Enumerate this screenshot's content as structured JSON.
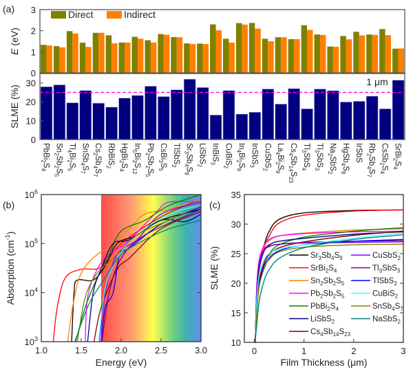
{
  "chart_data": [
    {
      "panel": "(a)",
      "type": "bar",
      "ylabel": "E (eV)",
      "ylim": [
        0,
        3
      ],
      "yticks": [
        0,
        1,
        2,
        3
      ],
      "categories": [
        "PbBi2S4",
        "Sn2Sb2S5",
        "Tl4Bi2S5",
        "SnSb4S7",
        "Cs2Sb4S7",
        "RbBiS2",
        "HgBi2S4",
        "In5Bi3S12",
        "Pb2Sb2S5",
        "CsBi3S5",
        "TlSbS2",
        "Sr3Sb4S9",
        "LiSbS2",
        "InBiS3",
        "CuBiS2",
        "In4Bi2S9",
        "InSbS3",
        "CuSbS2",
        "La4Bi2S9",
        "Cs4Sb14S23",
        "Tl3SbS4",
        "Tl3SbS3",
        "Na2SbS2",
        "HgSb4S8",
        "IrSbS",
        "Rb2Sb4S7",
        "CsSb2S4",
        "SrBi2S4"
      ],
      "legend_position": "top-left",
      "series": [
        {
          "name": "Direct",
          "color": "#808000",
          "values": [
            1.33,
            1.27,
            1.98,
            1.43,
            1.9,
            1.78,
            1.44,
            1.71,
            1.55,
            1.84,
            1.7,
            1.4,
            1.39,
            2.3,
            1.62,
            2.36,
            2.37,
            1.62,
            1.69,
            1.6,
            2.26,
            1.82,
            1.25,
            1.75,
            1.95,
            1.82,
            2.08,
            1.15
          ]
        },
        {
          "name": "Indirect",
          "color": "#ff8000",
          "values": [
            1.3,
            1.21,
            1.87,
            1.23,
            1.9,
            1.4,
            1.44,
            1.62,
            1.44,
            1.81,
            1.69,
            1.37,
            1.37,
            2.02,
            1.44,
            2.29,
            2.1,
            1.5,
            1.69,
            1.6,
            2.04,
            1.8,
            1.24,
            1.59,
            1.78,
            1.8,
            1.79,
            1.16
          ]
        }
      ]
    },
    {
      "panel": "(a)",
      "type": "bar",
      "ylabel": "SLME (%)",
      "ylim": [
        0,
        35
      ],
      "yticks": [
        0,
        10,
        20,
        30
      ],
      "annotation": "1 μm",
      "reference_line": {
        "value": 25,
        "color": "#ff00ff",
        "style": "dashed"
      },
      "color": "#000080",
      "values": [
        28.0,
        29.0,
        19.5,
        26.0,
        19.3,
        17.2,
        22.0,
        23.4,
        28.3,
        22.8,
        26.4,
        32.0,
        27.6,
        13.0,
        26.0,
        13.5,
        14.5,
        26.8,
        18.8,
        27.0,
        16.3,
        26.8,
        25.9,
        19.9,
        20.3,
        23.0,
        16.3,
        31.5
      ]
    },
    {
      "panel": "(b)",
      "type": "line",
      "xlabel": "Energy (eV)",
      "ylabel": "Absorption (cm-1)",
      "xlim": [
        1.0,
        3.0
      ],
      "ylim": [
        1000,
        1000000
      ],
      "yscale": "log",
      "xticks": [
        "1.0",
        "1.5",
        "2.0",
        "2.5",
        "3.0"
      ],
      "yticks": [
        3,
        4,
        5,
        6
      ],
      "visible_spectrum_band": {
        "from": 1.75,
        "to": 3.0
      },
      "series": [
        {
          "color": "#ff0000",
          "points": [
            [
              1.15,
              1000.0
            ],
            [
              1.2,
              5000.0
            ],
            [
              1.3,
              20000.0
            ],
            [
              1.5,
              30000.0
            ],
            [
              1.75,
              33000.0
            ],
            [
              2.0,
              100000.0
            ],
            [
              2.5,
              350000.0
            ],
            [
              3.0,
              800000.0
            ]
          ]
        },
        {
          "color": "#000000",
          "points": [
            [
              1.38,
              1000.0
            ],
            [
              1.41,
              10000.0
            ],
            [
              1.45,
              18000.0
            ],
            [
              1.65,
              18000.0
            ],
            [
              1.8,
              35000.0
            ],
            [
              1.95,
              100000.0
            ],
            [
              2.2,
              150000.0
            ],
            [
              2.5,
              300000.0
            ],
            [
              3.0,
              500000.0
            ]
          ]
        },
        {
          "color": "#ff8000",
          "points": [
            [
              1.33,
              1000.0
            ],
            [
              1.4,
              6000.0
            ],
            [
              1.5,
              25000.0
            ],
            [
              1.7,
              60000.0
            ],
            [
              1.9,
              90000.0
            ],
            [
              2.1,
              200000.0
            ],
            [
              2.3,
              400000.0
            ],
            [
              2.6,
              500000.0
            ],
            [
              3.0,
              800000.0
            ]
          ]
        },
        {
          "color": "#ff00ff",
          "points": [
            [
              1.55,
              1000.0
            ],
            [
              1.58,
              8000.0
            ],
            [
              1.7,
              30000.0
            ],
            [
              1.85,
              60000.0
            ],
            [
              2.05,
              100000.0
            ],
            [
              2.3,
              250000.0
            ],
            [
              2.45,
              450000.0
            ],
            [
              2.6,
              700000.0
            ],
            [
              3.0,
              700000.0
            ]
          ]
        },
        {
          "color": "#008000",
          "points": [
            [
              1.43,
              1000.0
            ],
            [
              1.55,
              5000.0
            ],
            [
              1.7,
              20000.0
            ],
            [
              1.85,
              60000.0
            ],
            [
              2.0,
              180000.0
            ],
            [
              2.3,
              300000.0
            ],
            [
              2.6,
              600000.0
            ],
            [
              3.0,
              1000000.0
            ]
          ]
        },
        {
          "color": "#000080",
          "points": [
            [
              1.58,
              1000.0
            ],
            [
              1.65,
              10000.0
            ],
            [
              1.75,
              30000.0
            ],
            [
              1.9,
              100000.0
            ],
            [
              2.1,
              120000.0
            ],
            [
              2.5,
              300000.0
            ],
            [
              2.8,
              280000.0
            ],
            [
              3.0,
              400000.0
            ]
          ]
        },
        {
          "color": "#800000",
          "points": [
            [
              1.66,
              1000.0
            ],
            [
              1.75,
              5000.0
            ],
            [
              1.95,
              30000.0
            ],
            [
              2.1,
              50000.0
            ],
            [
              2.5,
              200000.0
            ],
            [
              3.0,
              450000.0
            ]
          ]
        },
        {
          "color": "#8000ff",
          "points": [
            [
              1.73,
              1000.0
            ],
            [
              1.8,
              10000.0
            ],
            [
              1.95,
              60000.0
            ],
            [
              2.2,
              120000.0
            ],
            [
              2.5,
              400000.0
            ],
            [
              3.0,
              700000.0
            ]
          ]
        },
        {
          "color": "#800080",
          "points": [
            [
              1.76,
              1000.0
            ],
            [
              1.85,
              10000.0
            ],
            [
              2.0,
              50000.0
            ],
            [
              2.3,
              150000.0
            ],
            [
              3.0,
              500000.0
            ]
          ]
        },
        {
          "color": "#0000ff",
          "points": [
            [
              1.75,
              1000.0
            ],
            [
              1.8,
              5000.0
            ],
            [
              1.9,
              10000.0
            ],
            [
              1.98,
              60000.0
            ],
            [
              2.1,
              80000.0
            ],
            [
              2.5,
              250000.0
            ],
            [
              3.0,
              550000.0
            ]
          ]
        },
        {
          "color": "#40ffff",
          "points": [
            [
              1.72,
              1000.0
            ],
            [
              1.8,
              12000.0
            ],
            [
              1.95,
              50000.0
            ],
            [
              2.2,
              150000.0
            ],
            [
              2.6,
              400000.0
            ],
            [
              3.0,
              600000.0
            ]
          ]
        },
        {
          "color": "#808000",
          "points": [
            [
              1.45,
              1000.0
            ],
            [
              1.55,
              8000.0
            ],
            [
              1.7,
              25000.0
            ],
            [
              1.9,
              50000.0
            ],
            [
              2.2,
              150000.0
            ],
            [
              2.6,
              300000.0
            ],
            [
              3.0,
              600000.0
            ]
          ]
        },
        {
          "color": "#008080",
          "points": [
            [
              1.42,
              1000.0
            ],
            [
              1.6,
              6000.0
            ],
            [
              1.8,
              20000.0
            ],
            [
              2.0,
              60000.0
            ],
            [
              2.3,
              120000.0
            ],
            [
              2.6,
              200000.0
            ],
            [
              3.0,
              300000.0
            ]
          ]
        }
      ]
    },
    {
      "panel": "(c)",
      "type": "line",
      "xlabel": "Film Thickness (μm)",
      "ylabel": "SLME (%)",
      "xlim": [
        -0.2,
        3
      ],
      "ylim": [
        10,
        35
      ],
      "xticks": [
        0,
        1,
        2,
        3
      ],
      "yticks": [
        10,
        15,
        20,
        25,
        30,
        35
      ],
      "legend_position": "center-right",
      "x": [
        0.02,
        0.05,
        0.1,
        0.2,
        0.3,
        0.5,
        1,
        2,
        3
      ],
      "series": [
        {
          "name": "Sr3Sb4S9",
          "color": "#000000",
          "values": [
            10,
            19,
            23,
            26.5,
            28.8,
            30.8,
            31.9,
            32.3,
            32.4
          ]
        },
        {
          "name": "SrBi2S4",
          "color": "#ff0000",
          "values": [
            10,
            18.5,
            22.5,
            26,
            28,
            30.2,
            31.5,
            32.2,
            32.4
          ]
        },
        {
          "name": "Sn2Sb2S5",
          "color": "#ff8000",
          "values": [
            10,
            19,
            23.5,
            26.2,
            27.2,
            28,
            28.5,
            29,
            29.2
          ]
        },
        {
          "name": "Pb2Sb2S5",
          "color": "#ff00ff",
          "values": [
            10,
            19.5,
            24,
            26.5,
            27.4,
            28,
            28.4,
            28.7,
            28.8
          ]
        },
        {
          "name": "PbBi2S4",
          "color": "#008000",
          "values": [
            10,
            16,
            20.5,
            23.5,
            25,
            26.5,
            27.8,
            28.8,
            29.4
          ]
        },
        {
          "name": "LiSbS2",
          "color": "#000080",
          "values": [
            10,
            17.5,
            22.5,
            25.5,
            26.5,
            27.1,
            27.6,
            28.3,
            28.7
          ]
        },
        {
          "name": "Cs4Sb14S23",
          "color": "#800000",
          "values": [
            10,
            16,
            20.5,
            23.5,
            24.8,
            26,
            27,
            28.1,
            28.8
          ]
        },
        {
          "name": "CuSbS2",
          "color": "#8000ff",
          "values": [
            10,
            19,
            23.5,
            25.8,
            26.3,
            26.6,
            26.8,
            26.9,
            27.0
          ]
        },
        {
          "name": "Tl3SbS3",
          "color": "#800080",
          "values": [
            10,
            18,
            23,
            25.5,
            26.2,
            26.6,
            26.9,
            27.1,
            27.2
          ]
        },
        {
          "name": "TlSbS2",
          "color": "#0000ff",
          "values": [
            10,
            15.5,
            20,
            23,
            24.3,
            25.5,
            26.5,
            27.1,
            27.4
          ]
        },
        {
          "name": "CuBiS2",
          "color": "#40ffff",
          "values": [
            10,
            17,
            21.5,
            24,
            25,
            25.8,
            26.5,
            27.6,
            28.5
          ]
        },
        {
          "name": "SnSb4S7",
          "color": "#808000",
          "values": [
            10,
            15,
            19.5,
            22.5,
            24,
            25.3,
            26.1,
            26.5,
            26.6
          ]
        },
        {
          "name": "NaSbS2",
          "color": "#008080",
          "values": [
            10,
            13,
            17,
            20.5,
            22.3,
            24.2,
            26,
            27.4,
            28.2
          ]
        }
      ]
    }
  ],
  "panel_labels": {
    "a": "(a)",
    "b": "(b)",
    "c": "(c)"
  }
}
